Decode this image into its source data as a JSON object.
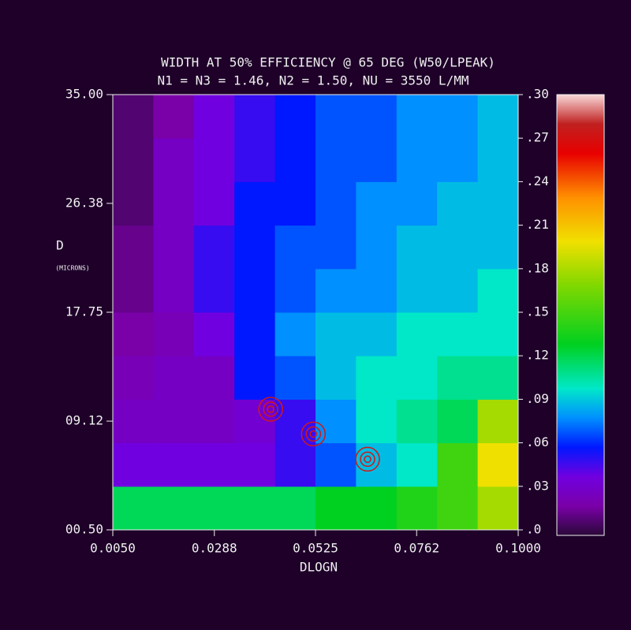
{
  "chart_data": {
    "type": "heatmap",
    "title": "WIDTH AT 50% EFFICIENCY @ 65 DEG (W50/LPEAK)",
    "subtitle": "N1 = N3 = 1.46, N2 = 1.50, NU = 3550 L/MM",
    "x_label": "DLOGN",
    "y_label": "D",
    "y_label_unit": "(MICRONS)",
    "xbins": [
      0.005,
      0.0145,
      0.024,
      0.0335,
      0.043,
      0.0525,
      0.062,
      0.0715,
      0.081,
      0.0905,
      0.1
    ],
    "ybins": [
      0.5,
      3.95,
      7.4,
      10.85,
      14.3,
      17.75,
      21.2,
      24.65,
      28.1,
      31.55,
      35
    ],
    "z": [
      [
        0.12,
        0.12,
        0.12,
        0.12,
        0.12,
        0.13,
        0.13,
        0.14,
        0.15,
        0.18
      ],
      [
        0.04,
        0.04,
        0.04,
        0.04,
        0.05,
        0.07,
        0.09,
        0.1,
        0.15,
        0.2
      ],
      [
        0.03,
        0.03,
        0.03,
        0.035,
        0.05,
        0.08,
        0.1,
        0.11,
        0.12,
        0.18
      ],
      [
        0.025,
        0.03,
        0.03,
        0.06,
        0.07,
        0.09,
        0.1,
        0.1,
        0.11,
        0.11
      ],
      [
        0.02,
        0.025,
        0.04,
        0.06,
        0.08,
        0.09,
        0.09,
        0.1,
        0.1,
        0.1
      ],
      [
        0.015,
        0.03,
        0.05,
        0.06,
        0.07,
        0.08,
        0.08,
        0.09,
        0.09,
        0.1
      ],
      [
        0.015,
        0.03,
        0.05,
        0.06,
        0.07,
        0.07,
        0.08,
        0.09,
        0.09,
        0.09
      ],
      [
        0.01,
        0.03,
        0.04,
        0.06,
        0.06,
        0.07,
        0.08,
        0.08,
        0.09,
        0.09
      ],
      [
        0.01,
        0.03,
        0.04,
        0.05,
        0.06,
        0.07,
        0.07,
        0.08,
        0.08,
        0.09
      ],
      [
        0.01,
        0.02,
        0.04,
        0.05,
        0.06,
        0.07,
        0.07,
        0.08,
        0.08,
        0.09
      ]
    ],
    "xlim": [
      0.005,
      0.1
    ],
    "xticks": [
      {
        "value": 0.005,
        "label": "0.0050"
      },
      {
        "value": 0.0288,
        "label": "0.0288"
      },
      {
        "value": 0.0525,
        "label": "0.0525"
      },
      {
        "value": 0.0762,
        "label": "0.0762"
      },
      {
        "value": 0.1,
        "label": "0.1000"
      }
    ],
    "ylim": [
      0.5,
      35
    ],
    "yticks": [
      {
        "value": 0.5,
        "label": "00.50"
      },
      {
        "value": 9.12,
        "label": "09.12"
      },
      {
        "value": 17.75,
        "label": "17.75"
      },
      {
        "value": 26.38,
        "label": "26.38"
      },
      {
        "value": 35,
        "label": "35.00"
      }
    ],
    "clim": [
      0,
      0.3
    ],
    "cticks": [
      {
        "value": 0,
        "label": ".0"
      },
      {
        "value": 0.03,
        "label": ".03"
      },
      {
        "value": 0.06,
        "label": ".06"
      },
      {
        "value": 0.09,
        "label": ".09"
      },
      {
        "value": 0.12,
        "label": ".12"
      },
      {
        "value": 0.15,
        "label": ".15"
      },
      {
        "value": 0.18,
        "label": ".18"
      },
      {
        "value": 0.21,
        "label": ".21"
      },
      {
        "value": 0.24,
        "label": ".24"
      },
      {
        "value": 0.27,
        "label": ".27"
      },
      {
        "value": 0.3,
        "label": ".30"
      }
    ],
    "colorscale": [
      [
        0,
        "#2a0838"
      ],
      [
        0.02,
        "#7a00a8"
      ],
      [
        0.04,
        "#7000e0"
      ],
      [
        0.06,
        "#0018ff"
      ],
      [
        0.08,
        "#0090ff"
      ],
      [
        0.1,
        "#00e8c8"
      ],
      [
        0.13,
        "#00d020"
      ],
      [
        0.17,
        "#80d800"
      ],
      [
        0.2,
        "#f0e000"
      ],
      [
        0.23,
        "#ff9000"
      ],
      [
        0.26,
        "#e80000"
      ],
      [
        0.28,
        "#c02020"
      ],
      [
        0.3,
        "#f8d8d8"
      ]
    ],
    "markers": {
      "x": [
        0.042,
        0.052,
        0.0647
      ],
      "y": [
        10.06,
        8.1,
        6.1
      ],
      "color": "#d01818"
    }
  }
}
